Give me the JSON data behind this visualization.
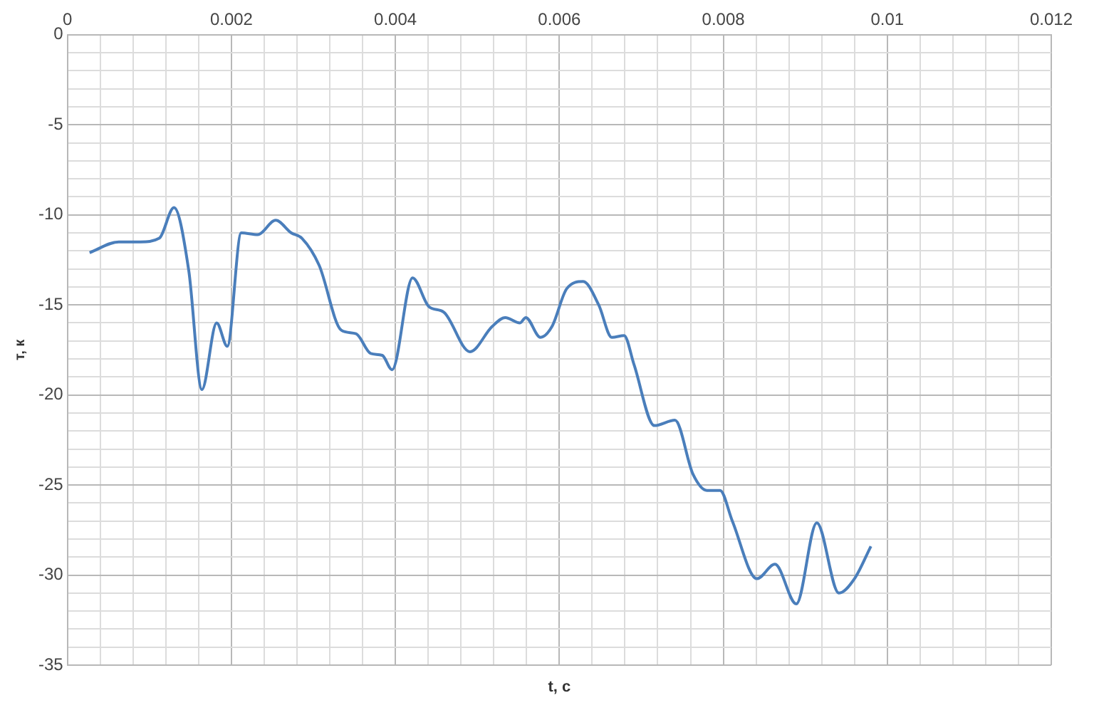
{
  "chart_data": {
    "type": "line",
    "xlabel": "t, c",
    "ylabel": "т, к",
    "x": [
      0.00027,
      0.000625,
      0.00089,
      0.00112,
      0.0013,
      0.00148,
      0.00164,
      0.00182,
      0.00195,
      0.00212,
      0.00232,
      0.00254,
      0.00273,
      0.00286,
      0.00307,
      0.00334,
      0.00352,
      0.0037,
      0.00384,
      0.00396,
      0.00421,
      0.00441,
      0.00459,
      0.00491,
      0.00518,
      0.00534,
      0.00552,
      0.00559,
      0.00577,
      0.00591,
      0.00609,
      0.00629,
      0.00648,
      0.00664,
      0.00679,
      0.00691,
      0.00716,
      0.00741,
      0.00763,
      0.0078,
      0.00796,
      0.00811,
      0.00841,
      0.00863,
      0.00889,
      0.00914,
      0.00941,
      0.0096,
      0.0098
    ],
    "series": [
      {
        "color": "#4a7ebb",
        "values": [
          -12.1,
          -11.5,
          -11.5,
          -11.3,
          -9.6,
          -13.1,
          -19.7,
          -16.0,
          -17.3,
          -11.0,
          -11.1,
          -10.3,
          -11.0,
          -11.3,
          -12.8,
          -16.4,
          -16.6,
          -17.7,
          -17.8,
          -18.6,
          -13.5,
          -15.1,
          -15.4,
          -17.6,
          -16.2,
          -15.7,
          -16.0,
          -15.7,
          -16.8,
          -16.2,
          -14.1,
          -13.7,
          -15.0,
          -16.8,
          -16.7,
          -18.3,
          -21.7,
          -21.4,
          -24.4,
          -25.3,
          -25.3,
          -27.0,
          -30.2,
          -29.4,
          -31.6,
          -27.1,
          -31.0,
          -30.2,
          -28.4
        ]
      }
    ],
    "xlim": [
      0,
      0.012
    ],
    "xticks": [
      0,
      {
        "value": 0.0004,
        "label": null
      },
      {
        "value": 0.0008,
        "label": null
      },
      {
        "value": 0.0012,
        "label": null
      },
      {
        "value": 0.0016,
        "label": null
      },
      0.002,
      {
        "value": 0.0024,
        "label": null
      },
      {
        "value": 0.0028,
        "label": null
      },
      {
        "value": 0.0032,
        "label": null
      },
      {
        "value": 0.0036,
        "label": null
      },
      0.004,
      {
        "value": 0.0044,
        "label": null
      },
      {
        "value": 0.0048,
        "label": null
      },
      {
        "value": 0.0052,
        "label": null
      },
      {
        "value": 0.0056,
        "label": null
      },
      0.006,
      {
        "value": 0.0064,
        "label": null
      },
      {
        "value": 0.0068,
        "label": null
      },
      {
        "value": 0.0072,
        "label": null
      },
      {
        "value": 0.0076,
        "label": null
      },
      0.008,
      {
        "value": 0.0084,
        "label": null
      },
      {
        "value": 0.0088,
        "label": null
      },
      {
        "value": 0.0092,
        "label": null
      },
      {
        "value": 0.0096,
        "label": null
      },
      0.01,
      {
        "value": 0.0104,
        "label": null
      },
      {
        "value": 0.0108,
        "label": null
      },
      {
        "value": 0.0112,
        "label": null
      },
      {
        "value": 0.0116,
        "label": null
      },
      0.012
    ],
    "ylim": [
      -35,
      0
    ],
    "yticks": [
      -35,
      {
        "value": -34,
        "label": null
      },
      {
        "value": -33,
        "label": null
      },
      {
        "value": -32,
        "label": null
      },
      {
        "value": -31,
        "label": null
      },
      -30,
      {
        "value": -29,
        "label": null
      },
      {
        "value": -28,
        "label": null
      },
      {
        "value": -27,
        "label": null
      },
      {
        "value": -26,
        "label": null
      },
      -25,
      {
        "value": -24,
        "label": null
      },
      {
        "value": -23,
        "label": null
      },
      {
        "value": -22,
        "label": null
      },
      {
        "value": -21,
        "label": null
      },
      -20,
      {
        "value": -19,
        "label": null
      },
      {
        "value": -18,
        "label": null
      },
      {
        "value": -17,
        "label": null
      },
      {
        "value": -16,
        "label": null
      },
      -15,
      {
        "value": -14,
        "label": null
      },
      {
        "value": -13,
        "label": null
      },
      {
        "value": -12,
        "label": null
      },
      {
        "value": -11,
        "label": null
      },
      -10,
      {
        "value": -9,
        "label": null
      },
      {
        "value": -8,
        "label": null
      },
      {
        "value": -7,
        "label": null
      },
      {
        "value": -6,
        "label": null
      },
      -5,
      {
        "value": -4,
        "label": null
      },
      {
        "value": -3,
        "label": null
      },
      {
        "value": -2,
        "label": null
      },
      {
        "value": -1,
        "label": null
      },
      0
    ],
    "grid": true,
    "legend": false,
    "marker": "none",
    "line_style": "solid"
  }
}
